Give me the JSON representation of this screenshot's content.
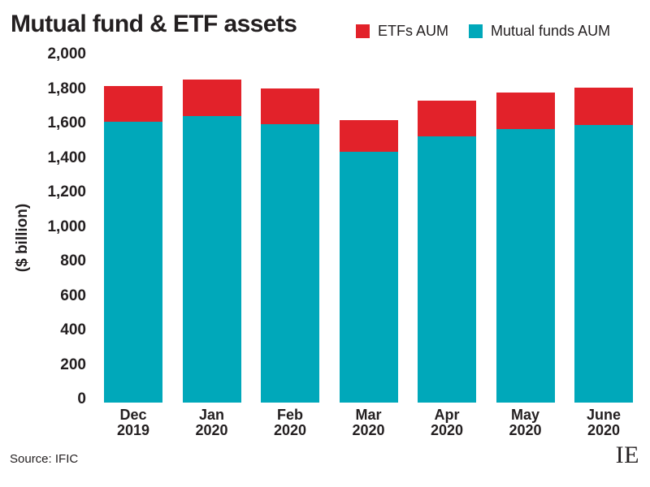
{
  "header": {
    "title": "Mutual fund & ETF assets"
  },
  "legend": {
    "items": [
      {
        "label": "ETFs AUM",
        "color": "#e2222a"
      },
      {
        "label": "Mutual funds AUM",
        "color": "#00a8ba"
      }
    ]
  },
  "footer": {
    "source": "Source: IFIC",
    "logo": "IE"
  },
  "chart_data": {
    "type": "bar",
    "stacked": true,
    "title": "Mutual fund & ETF assets",
    "ylabel": "($ billion)",
    "xlabel": "",
    "ylim": [
      0,
      2000
    ],
    "ytick_step": 200,
    "ytick_labels": [
      "0",
      "200",
      "400",
      "600",
      "800",
      "1,000",
      "1,200",
      "1,400",
      "1,600",
      "1,800",
      "2,000"
    ],
    "grid": false,
    "legend_position": "top-right",
    "categories": [
      "Dec 2019",
      "Jan 2020",
      "Feb 2020",
      "Mar 2020",
      "Apr 2020",
      "May 2020",
      "June 2020"
    ],
    "series": [
      {
        "name": "Mutual funds AUM",
        "color": "#00a8ba",
        "values": [
          1630,
          1662,
          1615,
          1455,
          1545,
          1585,
          1610
        ]
      },
      {
        "name": "ETFs AUM",
        "color": "#e2222a",
        "values": [
          205,
          210,
          205,
          185,
          205,
          215,
          215
        ]
      }
    ],
    "totals": [
      1835,
      1872,
      1820,
      1640,
      1750,
      1800,
      1825
    ]
  }
}
